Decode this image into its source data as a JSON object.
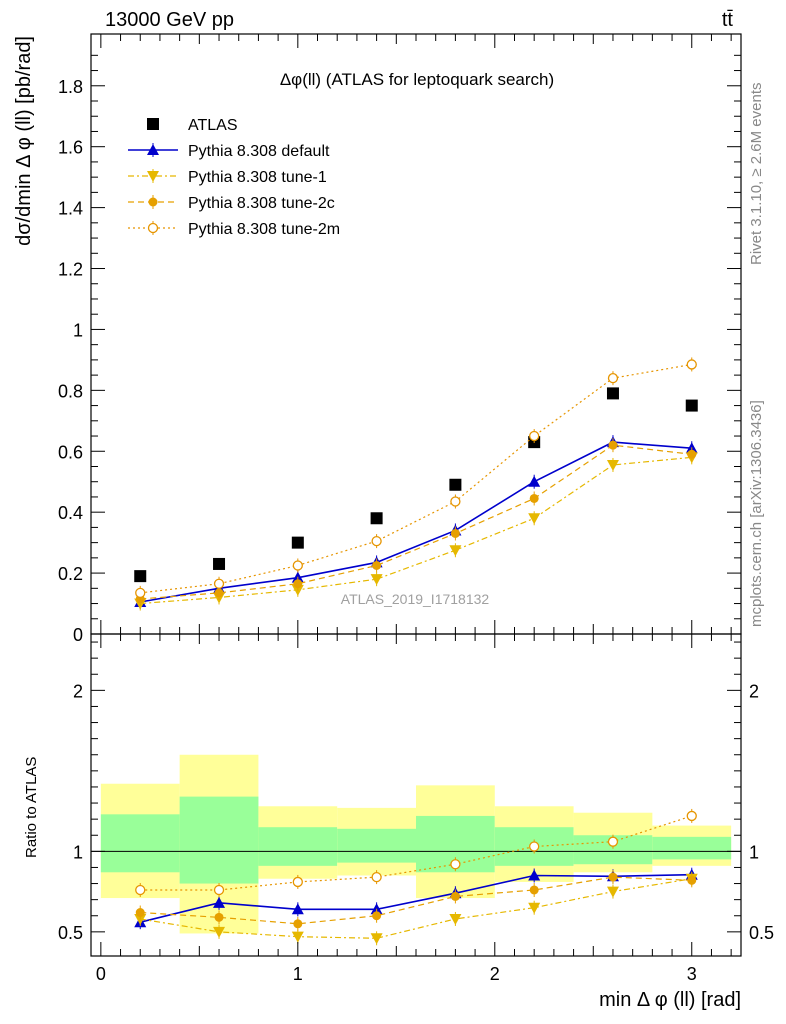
{
  "header": {
    "energy_label": "13000 GeV pp",
    "process_label": "tt̄"
  },
  "side_labels": {
    "rivet": "Rivet 3.1.10, ≥ 2.6M events",
    "mcplots": "mcplots.cern.ch [arXiv:1306.3436]"
  },
  "chart_data": [
    {
      "type": "scatter",
      "title": "Δφ(ll) (ATLAS for leptoquark search)",
      "watermark": "ATLAS_2019_I1718132",
      "xlabel": "min Δ φ (ll) [rad]",
      "ylabel": "dσ/dmin Δ φ (ll) [pb/rad]",
      "xlim": [
        -0.05,
        3.25
      ],
      "ylim": [
        0,
        1.97
      ],
      "yticks": [
        {
          "v": 0,
          "label": "0"
        },
        {
          "v": 0.2,
          "label": "0.2"
        },
        {
          "v": 0.4,
          "label": "0.4"
        },
        {
          "v": 0.6,
          "label": "0.6"
        },
        {
          "v": 0.8,
          "label": "0.8"
        },
        {
          "v": 1.0,
          "label": "1"
        },
        {
          "v": 1.2,
          "label": "1.2"
        },
        {
          "v": 1.4,
          "label": "1.4"
        },
        {
          "v": 1.6,
          "label": "1.6"
        },
        {
          "v": 1.8,
          "label": "1.8"
        }
      ],
      "legend_position": "top-left",
      "x": [
        0.2,
        0.6,
        1.0,
        1.4,
        1.8,
        2.2,
        2.6,
        3.0
      ],
      "series": [
        {
          "name": "ATLAS",
          "style": "data",
          "color": "#000000",
          "values": [
            0.19,
            0.23,
            0.3,
            0.38,
            0.49,
            0.63,
            0.79,
            0.75
          ]
        },
        {
          "name": "Pythia 8.308 default",
          "style": "default",
          "color": "#0000cc",
          "values": [
            0.105,
            0.15,
            0.185,
            0.235,
            0.34,
            0.5,
            0.63,
            0.61
          ]
        },
        {
          "name": "Pythia 8.308 tune-1",
          "style": "tune1",
          "color": "#e6b800",
          "values": [
            0.1,
            0.12,
            0.145,
            0.18,
            0.275,
            0.38,
            0.555,
            0.58
          ]
        },
        {
          "name": "Pythia 8.308 tune-2c",
          "style": "tune2c",
          "color": "#e6a000",
          "values": [
            0.115,
            0.135,
            0.165,
            0.225,
            0.33,
            0.445,
            0.62,
            0.59
          ]
        },
        {
          "name": "Pythia 8.308 tune-2m",
          "style": "tune2m",
          "color": "#e69500",
          "values": [
            0.135,
            0.165,
            0.225,
            0.305,
            0.435,
            0.65,
            0.84,
            0.885
          ]
        }
      ]
    },
    {
      "type": "scatter",
      "ylabel": "Ratio to ATLAS",
      "xlabel": "min Δ φ (ll) [rad]",
      "xlim": [
        -0.05,
        3.25
      ],
      "ylim": [
        0.35,
        2.35
      ],
      "xticks": [
        {
          "v": 0,
          "label": "0"
        },
        {
          "v": 1,
          "label": "1"
        },
        {
          "v": 2,
          "label": "2"
        },
        {
          "v": 3,
          "label": "3"
        }
      ],
      "yticks": [
        {
          "v": 0.5,
          "label": "0.5"
        },
        {
          "v": 1,
          "label": "1"
        },
        {
          "v": 2,
          "label": "2"
        }
      ],
      "bands": [
        {
          "x0": 0.0,
          "x1": 0.4,
          "yellow": [
            0.71,
            1.42
          ],
          "green": [
            0.87,
            1.23
          ]
        },
        {
          "x0": 0.4,
          "x1": 0.8,
          "yellow": [
            0.49,
            1.6
          ],
          "green": [
            0.8,
            1.34
          ]
        },
        {
          "x0": 0.8,
          "x1": 1.2,
          "yellow": [
            0.83,
            1.28
          ],
          "green": [
            0.91,
            1.15
          ]
        },
        {
          "x0": 1.2,
          "x1": 1.6,
          "yellow": [
            0.85,
            1.27
          ],
          "green": [
            0.93,
            1.14
          ]
        },
        {
          "x0": 1.6,
          "x1": 2.0,
          "yellow": [
            0.71,
            1.41
          ],
          "green": [
            0.87,
            1.22
          ]
        },
        {
          "x0": 2.0,
          "x1": 2.4,
          "yellow": [
            0.81,
            1.28
          ],
          "green": [
            0.91,
            1.15
          ]
        },
        {
          "x0": 2.4,
          "x1": 2.8,
          "yellow": [
            0.87,
            1.24
          ],
          "green": [
            0.92,
            1.1
          ]
        },
        {
          "x0": 2.8,
          "x1": 3.2,
          "yellow": [
            0.91,
            1.16
          ],
          "green": [
            0.95,
            1.09
          ]
        }
      ],
      "x": [
        0.2,
        0.6,
        1.0,
        1.4,
        1.8,
        2.2,
        2.6,
        3.0
      ],
      "series": [
        {
          "name": "Pythia 8.308 default",
          "style": "default",
          "color": "#0000cc",
          "values": [
            0.56,
            0.68,
            0.64,
            0.64,
            0.74,
            0.85,
            0.845,
            0.855
          ]
        },
        {
          "name": "Pythia 8.308 tune-1",
          "style": "tune1",
          "color": "#e6b800",
          "values": [
            0.58,
            0.5,
            0.47,
            0.46,
            0.58,
            0.65,
            0.75,
            0.83
          ]
        },
        {
          "name": "Pythia 8.308 tune-2c",
          "style": "tune2c",
          "color": "#e6a000",
          "values": [
            0.62,
            0.59,
            0.55,
            0.6,
            0.72,
            0.76,
            0.84,
            0.82
          ]
        },
        {
          "name": "Pythia 8.308 tune-2m",
          "style": "tune2m",
          "color": "#e69500",
          "values": [
            0.76,
            0.76,
            0.81,
            0.84,
            0.92,
            1.03,
            1.06,
            1.22
          ]
        }
      ]
    }
  ]
}
